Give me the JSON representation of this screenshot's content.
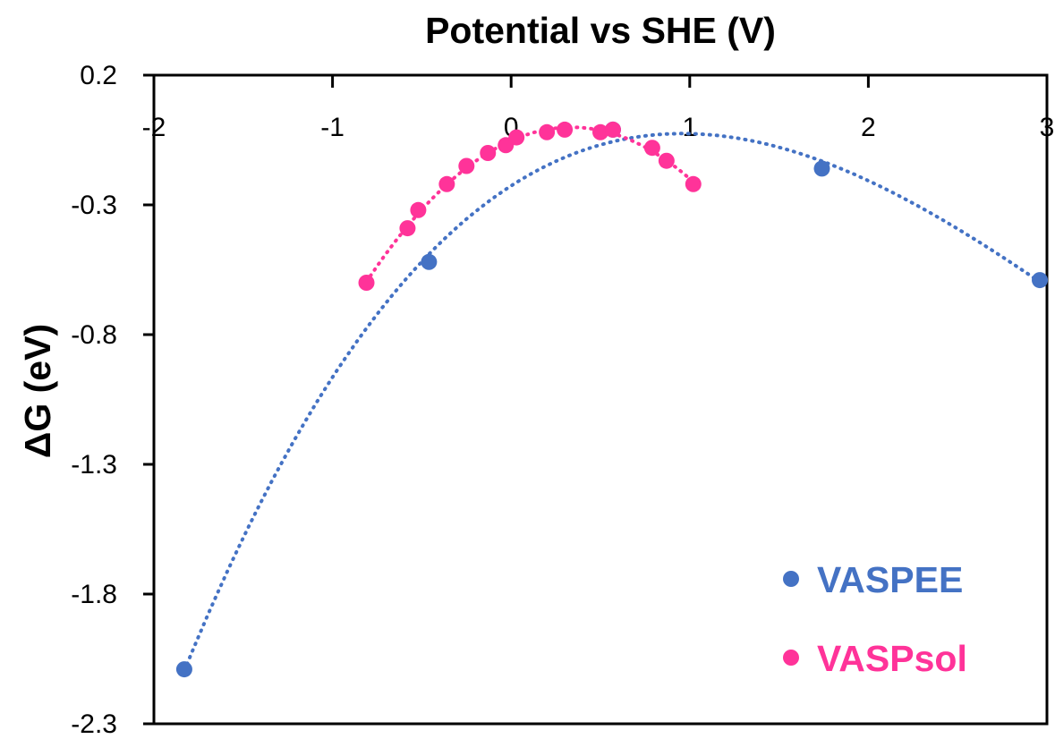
{
  "chart_data": {
    "type": "scatter",
    "title": "",
    "xlabel": "Potential vs SHE (V)",
    "ylabel": "ΔG (eV)",
    "xlim": [
      -2,
      3
    ],
    "ylim": [
      -2.3,
      0.2
    ],
    "x_ticks": [
      -2,
      -1,
      0,
      1,
      2,
      3
    ],
    "y_ticks": [
      0.2,
      -0.3,
      -0.8,
      -1.3,
      -1.8,
      -2.3
    ],
    "x_axis_position": "top",
    "grid": false,
    "legend_position": "bottom-right",
    "series": [
      {
        "name": "VASPEE",
        "color": "#4472C4",
        "trendline": "polynomial-dotted",
        "x": [
          -1.83,
          -0.46,
          0.57,
          1.74,
          2.96
        ],
        "y": [
          -2.09,
          -0.52,
          -0.01,
          -0.16,
          -0.59
        ]
      },
      {
        "name": "VASPsol",
        "color": "#FF3399",
        "trendline": "polynomial-dotted",
        "x": [
          -0.81,
          -0.58,
          -0.52,
          -0.36,
          -0.25,
          -0.13,
          -0.03,
          0.03,
          0.2,
          0.3,
          0.5,
          0.57,
          0.79,
          0.87,
          1.02
        ],
        "y": [
          -0.6,
          -0.39,
          -0.32,
          -0.22,
          -0.15,
          -0.1,
          -0.07,
          -0.04,
          -0.02,
          -0.01,
          -0.02,
          -0.01,
          -0.08,
          -0.13,
          -0.22
        ]
      }
    ]
  }
}
